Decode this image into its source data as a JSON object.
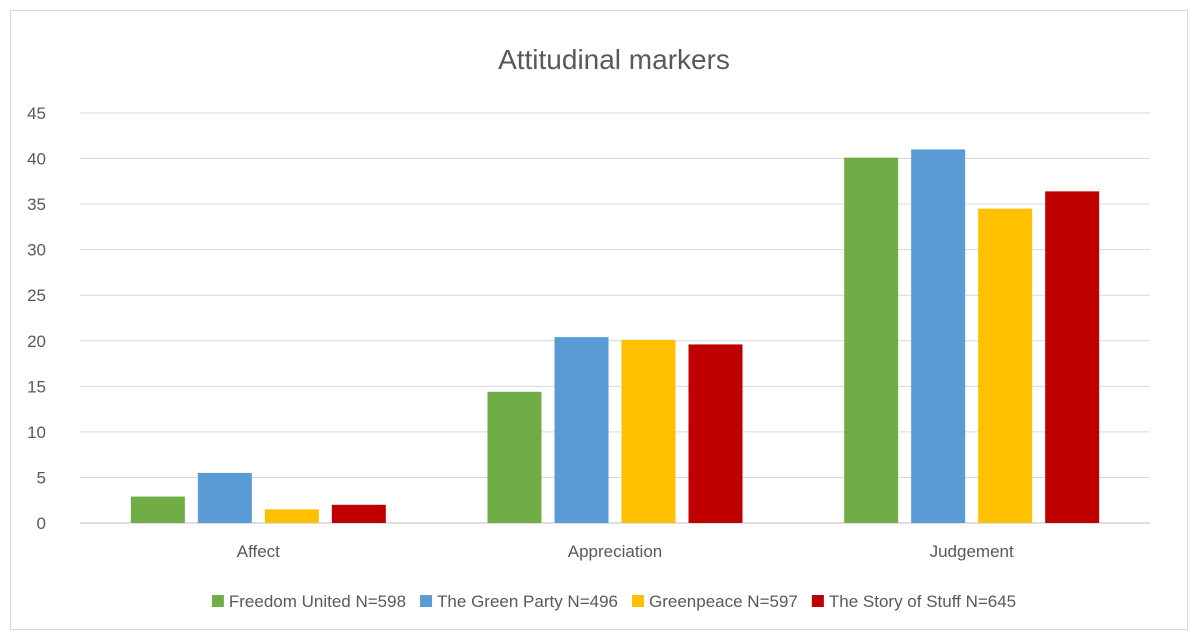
{
  "chart_data": {
    "type": "bar",
    "title": "Attitudinal markers",
    "xlabel": "",
    "ylabel": "",
    "categories": [
      "Affect",
      "Appreciation",
      "Judgement"
    ],
    "ylim": [
      0,
      45
    ],
    "yticks": [
      0,
      5,
      10,
      15,
      20,
      25,
      30,
      35,
      40,
      45
    ],
    "grid": true,
    "legend_position": "bottom",
    "series": [
      {
        "name": "Freedom United N=598",
        "color": "#70ad47",
        "values": [
          2.9,
          14.4,
          40.1
        ]
      },
      {
        "name": "The Green Party N=496",
        "color": "#5b9bd5",
        "values": [
          5.5,
          20.4,
          41.0
        ]
      },
      {
        "name": "Greenpeace N=597",
        "color": "#ffc000",
        "values": [
          1.5,
          20.1,
          34.5
        ]
      },
      {
        "name": "The Story of Stuff N=645",
        "color": "#c00000",
        "values": [
          2.0,
          19.6,
          36.4
        ]
      }
    ]
  }
}
